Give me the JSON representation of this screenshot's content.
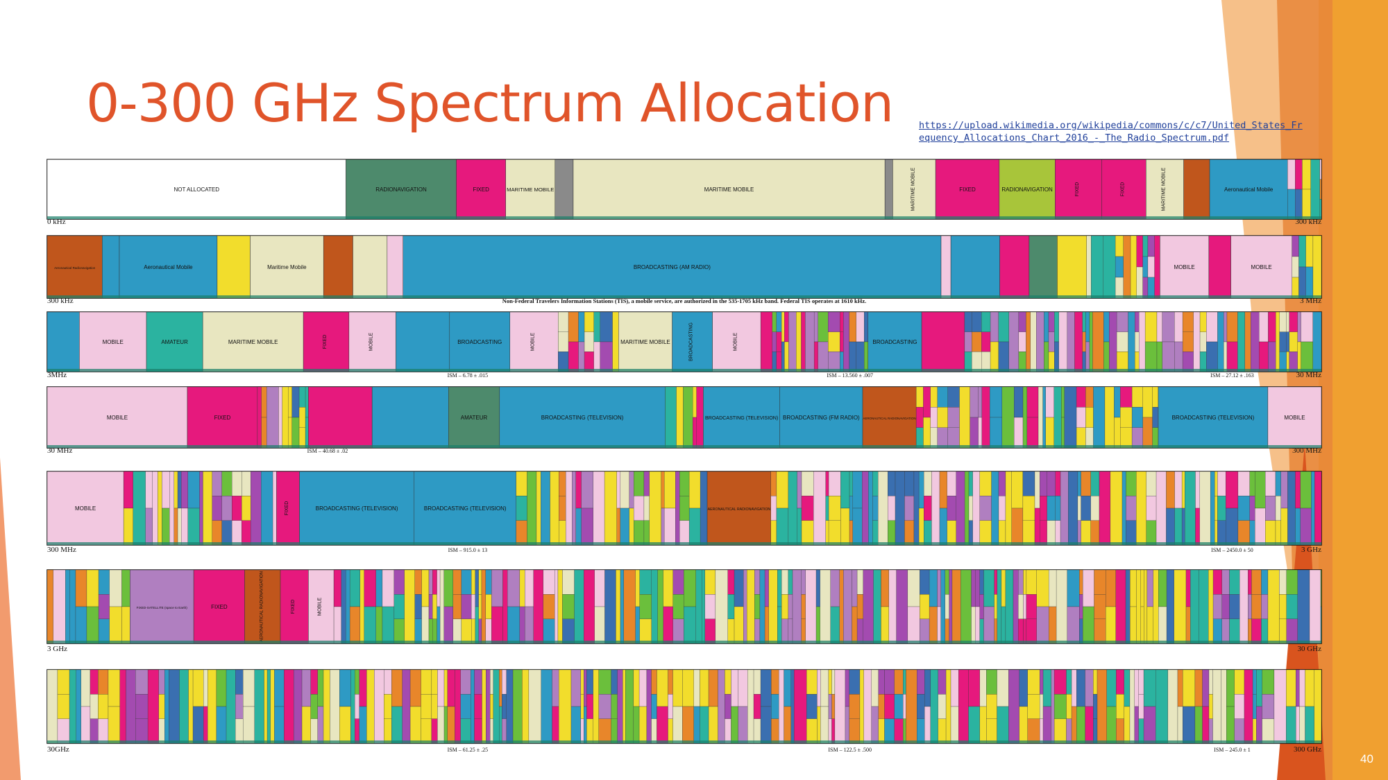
{
  "slide": {
    "title": "0-300 GHz Spectrum Allocation",
    "source_link": "https://upload.wikimedia.org/wikipedia/commons/c/c7/United_States_Frequency_Allocations_Chart_2016_-_The_Radio_Spectrum.pdf",
    "page_number": "40"
  },
  "colors": {
    "title": "#e0542a",
    "link": "#1f3f9a",
    "accent_orange": "#f0a030",
    "accent_red": "#d9541e",
    "fixed": "#e6197d",
    "mobile": "#f2c8e0",
    "broadcasting": "#2e9ac4",
    "maritime_mobile": "#e8e6c0",
    "radionavigation": "#4d8a6c",
    "aeronautical_radionavigation": "#c0561c",
    "radiolocation": "#f2dd2c",
    "fixed_satellite": "#b07fc0",
    "amateur": "#2bb3a0",
    "not_allocated": "#ffffff"
  },
  "chart_data": [
    {
      "type": "band",
      "start_label": "0 kHz",
      "end_label": "300 kHz",
      "segments": [
        {
          "label": "NOT ALLOCATED",
          "service": "not_allocated",
          "width": 23
        },
        {
          "label": "RADIONAVIGATION",
          "service": "radionavigation",
          "width": 8.5
        },
        {
          "label": "FIXED",
          "service": "fixed",
          "width": 3.8
        },
        {
          "label": "MARITIME MOBILE",
          "service": "maritime_mobile",
          "width": 3.8
        },
        {
          "label": "",
          "service": "standard_frequency",
          "width": 1.4
        },
        {
          "label": "MARITIME MOBILE",
          "service": "maritime_mobile",
          "width": 24
        },
        {
          "label": "",
          "service": "standard_frequency",
          "width": 0.6
        },
        {
          "label": "MARITIME MOBILE",
          "service": "maritime_mobile",
          "width": 3.3
        },
        {
          "label": "FIXED",
          "service": "fixed",
          "width": 4.9
        },
        {
          "label": "RADIONAVIGATION",
          "service": "radiolocation_green",
          "width": 4.3
        },
        {
          "label": "FIXED",
          "service": "fixed",
          "width": 3.6
        },
        {
          "label": "FIXED",
          "service": "fixed",
          "width": 3.4
        },
        {
          "label": "MARITIME MOBILE",
          "service": "maritime_mobile",
          "width": 2.9
        },
        {
          "label": "",
          "service": "aeronautical_radionavigation",
          "width": 2
        },
        {
          "label": "Aeronautical Mobile",
          "service": "broadcasting",
          "width": 6
        },
        {
          "label": "",
          "service": "misc",
          "width": 2.6
        }
      ]
    },
    {
      "type": "band",
      "start_label": "300 kHz",
      "end_label": "3 MHz",
      "annotation": "Non-Federal Travelers Information Stations (TIS), a mobile service, are authorized in the 535-1705 kHz band. Federal TIS operates at 1610 kHz.",
      "segments": [
        {
          "label": "Aeronautical Radionavigation",
          "service": "aeronautical_radionavigation",
          "width": 4.5
        },
        {
          "label": "",
          "service": "broadcasting",
          "width": 1.4
        },
        {
          "label": "Aeronautical Mobile",
          "service": "broadcasting",
          "width": 8
        },
        {
          "label": "",
          "service": "radiolocation",
          "width": 2.7
        },
        {
          "label": "Maritime Mobile",
          "service": "maritime_mobile",
          "width": 6
        },
        {
          "label": "",
          "service": "aeronautical_radionavigation",
          "width": 2.4
        },
        {
          "label": "",
          "service": "maritime_mobile",
          "width": 2.8
        },
        {
          "label": "",
          "service": "mobile",
          "width": 1.3
        },
        {
          "label": "BROADCASTING (AM RADIO)",
          "service": "broadcasting",
          "width": 44
        },
        {
          "label": "",
          "service": "mobile",
          "width": 0.8
        },
        {
          "label": "",
          "service": "broadcasting",
          "width": 4
        },
        {
          "label": "",
          "service": "fixed",
          "width": 2.4
        },
        {
          "label": "",
          "service": "radionavigation",
          "width": 2.3
        },
        {
          "label": "",
          "service": "radiolocation",
          "width": 2.4
        },
        {
          "label": "",
          "service": "misc",
          "width": 6
        },
        {
          "label": "MOBILE",
          "service": "mobile",
          "width": 4
        },
        {
          "label": "",
          "service": "fixed",
          "width": 1.8
        },
        {
          "label": "MOBILE",
          "service": "mobile",
          "width": 5
        },
        {
          "label": "",
          "service": "misc",
          "width": 2.4
        }
      ]
    },
    {
      "type": "band",
      "start_label": "3MHz",
      "end_label": "30 MHz",
      "ism_labels": [
        "ISM – 6.78 ± .015",
        "ISM – 13.560 ± .007",
        "ISM – 27.12 ± .163"
      ],
      "segments": [
        {
          "label": "",
          "service": "broadcasting",
          "width": 2.4
        },
        {
          "label": "MOBILE",
          "service": "mobile",
          "width": 5
        },
        {
          "label": "AMATEUR",
          "service": "amateur",
          "width": 4.2
        },
        {
          "label": "MARITIME MOBILE",
          "service": "maritime_mobile",
          "width": 7.5
        },
        {
          "label": "FIXED",
          "service": "fixed",
          "width": 3.4
        },
        {
          "label": "MOBILE",
          "service": "mobile",
          "width": 3.5
        },
        {
          "label": "",
          "service": "broadcasting",
          "width": 4
        },
        {
          "label": "BROADCASTING",
          "service": "broadcasting",
          "width": 4.5
        },
        {
          "label": "MOBILE",
          "service": "mobile",
          "width": 3.6
        },
        {
          "label": "",
          "service": "misc",
          "width": 4.5
        },
        {
          "label": "MARITIME MOBILE",
          "service": "maritime_mobile",
          "width": 4
        },
        {
          "label": "BROADCASTING",
          "service": "broadcasting",
          "width": 3
        },
        {
          "label": "MOBILE",
          "service": "mobile",
          "width": 3.6
        },
        {
          "label": "",
          "service": "misc",
          "width": 8
        },
        {
          "label": "BROADCASTING",
          "service": "broadcasting",
          "width": 4
        },
        {
          "label": "",
          "service": "fixed",
          "width": 3.2
        },
        {
          "label": "",
          "service": "misc",
          "width": 26.6
        }
      ]
    },
    {
      "type": "band",
      "start_label": "30 MHz",
      "end_label": "300 MHz",
      "ism_labels": [
        "ISM – 40.68 ± .02"
      ],
      "segments": [
        {
          "label": "MOBILE",
          "service": "mobile",
          "width": 11
        },
        {
          "label": "FIXED",
          "service": "fixed",
          "width": 5.5
        },
        {
          "label": "",
          "service": "misc",
          "width": 4
        },
        {
          "label": "",
          "service": "fixed",
          "width": 5
        },
        {
          "label": "",
          "service": "broadcasting",
          "width": 6
        },
        {
          "label": "AMATEUR",
          "service": "radionavigation",
          "width": 4
        },
        {
          "label": "BROADCASTING (TELEVISION)",
          "service": "broadcasting",
          "width": 13
        },
        {
          "label": "",
          "service": "misc",
          "width": 3
        },
        {
          "label": "BROADCASTING (TELEVISION)",
          "service": "broadcasting",
          "width": 6
        },
        {
          "label": "BROADCASTING (FM RADIO)",
          "service": "broadcasting",
          "width": 6.5
        },
        {
          "label": "AERONAUTICAL RADIONAVIGATION",
          "service": "aeronautical_radionavigation",
          "width": 4.2
        },
        {
          "label": "",
          "service": "misc",
          "width": 19
        },
        {
          "label": "BROADCASTING (TELEVISION)",
          "service": "broadcasting",
          "width": 8.6
        },
        {
          "label": "MOBILE",
          "service": "mobile",
          "width": 4.2
        }
      ]
    },
    {
      "type": "band",
      "start_label": "300 MHz",
      "end_label": "3 GHz",
      "ism_labels": [
        "ISM – 915.0 ± 13",
        "ISM – 2450.0 ± 50"
      ],
      "segments": [
        {
          "label": "MOBILE",
          "service": "mobile",
          "width": 6
        },
        {
          "label": "",
          "service": "misc",
          "width": 12
        },
        {
          "label": "FIXED",
          "service": "fixed",
          "width": 1.8
        },
        {
          "label": "BROADCASTING (TELEVISION)",
          "service": "broadcasting",
          "width": 9
        },
        {
          "label": "BROADCASTING (TELEVISION)",
          "service": "broadcasting",
          "width": 8
        },
        {
          "label": "",
          "service": "misc",
          "width": 15
        },
        {
          "label": "AERONAUTICAL RADIONAVIGATION",
          "service": "aeronautical_radionavigation",
          "width": 5
        },
        {
          "label": "",
          "service": "misc",
          "width": 43.2
        }
      ]
    },
    {
      "type": "band",
      "start_label": "3 GHz",
      "end_label": "30 GHz",
      "segments": [
        {
          "label": "",
          "service": "misc",
          "width": 6.5
        },
        {
          "label": "FIXED-SATELLITE (space to Earth)",
          "service": "fixed_satellite",
          "width": 5
        },
        {
          "label": "FIXED",
          "service": "fixed",
          "width": 4
        },
        {
          "label": "AERONAUTICAL RADIONAVIGATION",
          "service": "aeronautical_radionavigation",
          "width": 2.8
        },
        {
          "label": "FIXED",
          "service": "fixed",
          "width": 2.2
        },
        {
          "label": "MOBILE",
          "service": "mobile",
          "width": 2
        },
        {
          "label": "",
          "service": "misc",
          "width": 77.5
        }
      ]
    },
    {
      "type": "band",
      "start_label": "30GHz",
      "end_label": "300 GHz",
      "ism_labels": [
        "ISM – 61.25 ± .25",
        "ISM – 122.5 ± .500",
        "ISM – 245.0 ± 1"
      ],
      "segments": [
        {
          "label": "",
          "service": "misc",
          "width": 100
        }
      ]
    }
  ]
}
